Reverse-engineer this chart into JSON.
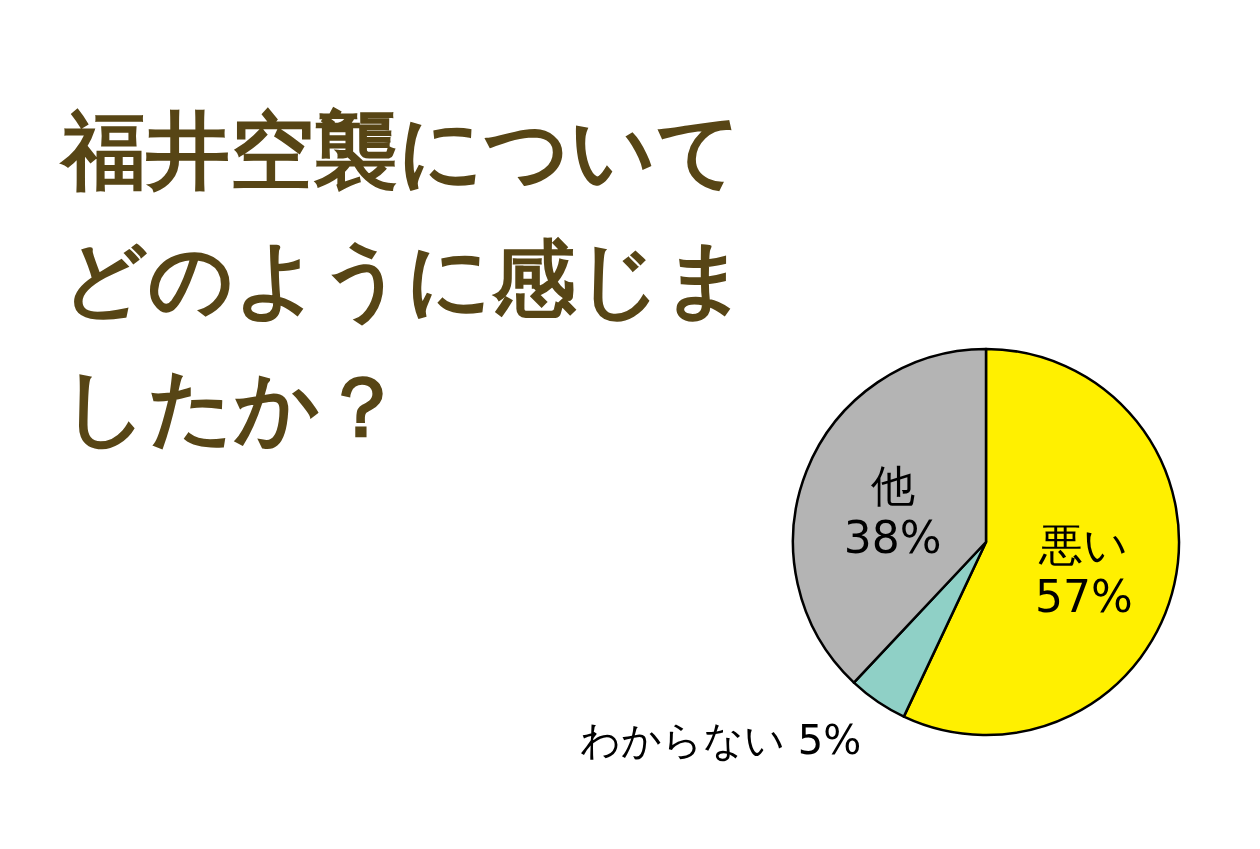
{
  "chart_data": {
    "type": "pie",
    "title": "福井空襲についてどのように感じましたか？",
    "categories": [
      "悪い",
      "わからない",
      "他"
    ],
    "values": [
      57,
      5,
      38
    ],
    "colors": [
      "#fff000",
      "#8fd0c6",
      "#b4b4b4"
    ],
    "value_labels": [
      "57%",
      "5%",
      "38%"
    ]
  }
}
